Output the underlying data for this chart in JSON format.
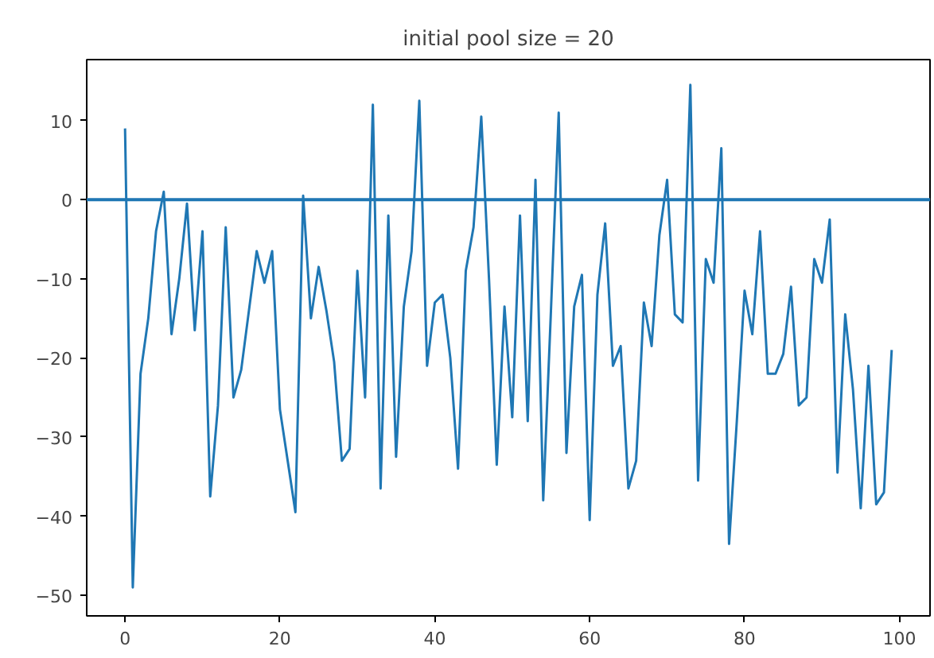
{
  "chart_data": {
    "type": "line",
    "title": "initial pool size = 20",
    "x": [
      0,
      1,
      2,
      3,
      4,
      5,
      6,
      7,
      8,
      9,
      10,
      11,
      12,
      13,
      14,
      15,
      16,
      17,
      18,
      19,
      20,
      21,
      22,
      23,
      24,
      25,
      26,
      27,
      28,
      29,
      30,
      31,
      32,
      33,
      34,
      35,
      36,
      37,
      38,
      39,
      40,
      41,
      42,
      43,
      44,
      45,
      46,
      47,
      48,
      49,
      50,
      51,
      52,
      53,
      54,
      55,
      56,
      57,
      58,
      59,
      60,
      61,
      62,
      63,
      64,
      65,
      66,
      67,
      68,
      69,
      70,
      71,
      72,
      73,
      74,
      75,
      76,
      77,
      78,
      79,
      80,
      81,
      82,
      83,
      84,
      85,
      86,
      87,
      88,
      89,
      90,
      91,
      92,
      93,
      94,
      95,
      96,
      97,
      98,
      99
    ],
    "series": [
      {
        "color": "#1f77b4",
        "values": [
          9,
          -49,
          -22,
          -15,
          -4,
          1,
          -17,
          -10,
          -0.5,
          -16.5,
          -4,
          -37.5,
          -26,
          -3.5,
          -25,
          -21.5,
          -14,
          -6.5,
          -10.5,
          -6.5,
          -26.5,
          -33,
          -39.5,
          0.5,
          -15,
          -8.5,
          -14,
          -20.5,
          -33,
          -31.5,
          -9,
          -25,
          12,
          -36.5,
          -2,
          -32.5,
          -13.5,
          -6.5,
          12.5,
          -21,
          -13,
          -12,
          -20,
          -34,
          -9,
          -3.5,
          10.5,
          -10,
          -33.5,
          -13.5,
          -27.5,
          -2,
          -28,
          2.5,
          -38,
          -14,
          11,
          -32,
          -13.5,
          -9.5,
          -40.5,
          -12,
          -3,
          -21,
          -18.5,
          -36.5,
          -33,
          -13,
          -18.5,
          -4.5,
          2.5,
          -14.5,
          -15.5,
          14.5,
          -35.5,
          -7.5,
          -10.5,
          6.5,
          -43.5,
          -28,
          -11.5,
          -17,
          -4,
          -22,
          -22,
          -19.5,
          -11,
          -26,
          -25,
          -7.5,
          -10.5,
          -2.5,
          -34.5,
          -14.5,
          -24,
          -39,
          -21,
          -38.5,
          -37,
          -19
        ]
      }
    ],
    "ref_lines": [
      {
        "axis": "y",
        "value": 0,
        "color": "#1f77b4"
      }
    ],
    "xlim": [
      -4.95,
      103.95
    ],
    "ylim": [
      -52.6,
      17.7
    ],
    "xticks": [
      0,
      20,
      40,
      60,
      80,
      100
    ],
    "yticks": [
      -50,
      -40,
      -30,
      -20,
      -10,
      0,
      10
    ],
    "grid": false,
    "marker": "none",
    "line_style": "solid"
  }
}
